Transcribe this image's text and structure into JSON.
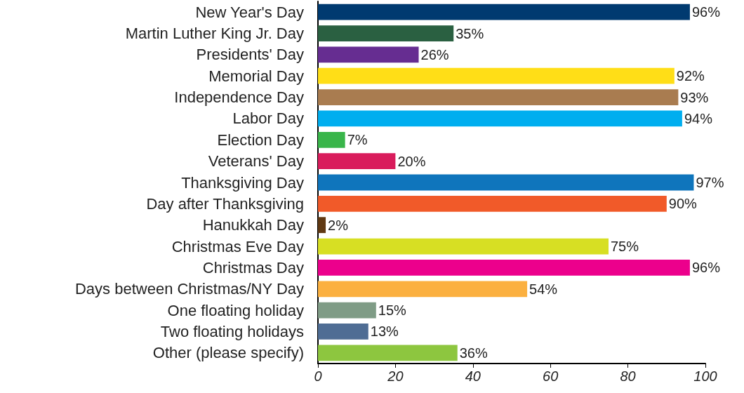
{
  "chart_data": {
    "type": "bar",
    "orientation": "horizontal",
    "categories": [
      "New Year's Day",
      "Martin Luther King Jr. Day",
      "Presidents' Day",
      "Memorial Day",
      "Independence Day",
      "Labor Day",
      "Election Day",
      "Veterans' Day",
      "Thanksgiving Day",
      "Day after Thanksgiving",
      "Hanukkah Day",
      "Christmas Eve Day",
      "Christmas Day",
      "Days between Christmas/NY Day",
      "One floating holiday",
      "Two floating holidays",
      "Other (please specify)"
    ],
    "values": [
      96,
      35,
      26,
      92,
      93,
      94,
      7,
      20,
      97,
      90,
      2,
      75,
      96,
      54,
      15,
      13,
      36
    ],
    "value_labels": [
      "96%",
      "35%",
      "26%",
      "92%",
      "93%",
      "94%",
      "7%",
      "20%",
      "97%",
      "90%",
      "2%",
      "75%",
      "96%",
      "54%",
      "15%",
      "13%",
      "36%"
    ],
    "colors": [
      "#003a70",
      "#2a6041",
      "#662d91",
      "#ffde17",
      "#a97c50",
      "#00aeef",
      "#39b54a",
      "#d91c5c",
      "#0f75bc",
      "#f15a29",
      "#603913",
      "#d7df23",
      "#ec008c",
      "#fbb040",
      "#7f9c86",
      "#4f6d94",
      "#8dc63f"
    ],
    "xlim": [
      0,
      100
    ],
    "xticks": [
      0,
      20,
      40,
      60,
      80,
      100
    ],
    "grid": false
  }
}
